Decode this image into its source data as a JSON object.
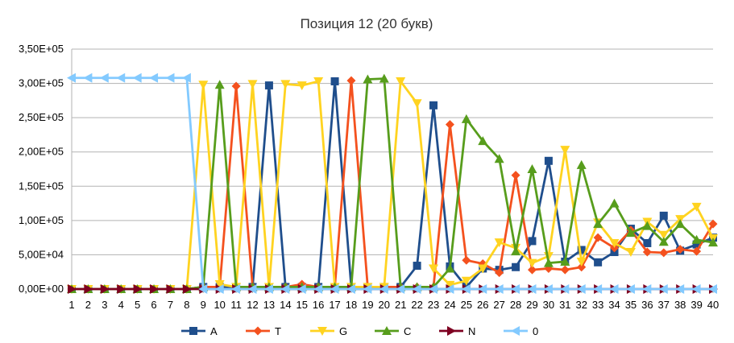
{
  "chart_data": {
    "type": "line",
    "title": "Позиция 12 (20 букв)",
    "xlabel": "",
    "ylabel": "",
    "categories": [
      "1",
      "2",
      "3",
      "4",
      "5",
      "6",
      "7",
      "8",
      "9",
      "10",
      "11",
      "12",
      "13",
      "14",
      "15",
      "16",
      "17",
      "18",
      "19",
      "20",
      "21",
      "22",
      "23",
      "24",
      "25",
      "26",
      "27",
      "28",
      "29",
      "30",
      "31",
      "32",
      "33",
      "34",
      "35",
      "36",
      "37",
      "38",
      "39",
      "40"
    ],
    "ylim": [
      0,
      350000
    ],
    "yticks": [
      "0,00E+00",
      "5,00E+04",
      "1,00E+05",
      "1,50E+05",
      "2,00E+05",
      "2,50E+05",
      "3,00E+05",
      "3,50E+05"
    ],
    "ytick_values": [
      0,
      50000,
      100000,
      150000,
      200000,
      250000,
      300000,
      350000
    ],
    "grid": "horizontal",
    "legend_position": "bottom",
    "series": [
      {
        "name": "A",
        "color": "#1f4e8c",
        "marker": "square",
        "values": [
          0,
          0,
          0,
          0,
          0,
          0,
          0,
          0,
          3000,
          3000,
          3000,
          3000,
          297000,
          3000,
          3000,
          3000,
          303000,
          3000,
          3000,
          3000,
          3000,
          34000,
          268000,
          33000,
          3000,
          30000,
          28000,
          32000,
          70000,
          187000,
          40000,
          57000,
          39000,
          54000,
          88000,
          67000,
          107000,
          56000,
          65000,
          75000
        ]
      },
      {
        "name": "T",
        "color": "#f4511e",
        "marker": "diamond",
        "values": [
          0,
          0,
          0,
          0,
          0,
          0,
          0,
          0,
          3000,
          3000,
          296000,
          3000,
          3000,
          3000,
          7000,
          3000,
          3000,
          304000,
          3000,
          3000,
          3000,
          3000,
          3000,
          240000,
          42000,
          37000,
          24000,
          166000,
          28000,
          30000,
          28000,
          32000,
          75000,
          60000,
          86000,
          54000,
          53000,
          58000,
          55000,
          95000
        ]
      },
      {
        "name": "G",
        "color": "#ffd320",
        "marker": "triangle-down",
        "values": [
          0,
          0,
          0,
          0,
          0,
          0,
          0,
          0,
          298000,
          7000,
          3000,
          299000,
          3000,
          299000,
          297000,
          303000,
          3000,
          3000,
          3000,
          3000,
          303000,
          271000,
          30000,
          6000,
          12000,
          30000,
          68000,
          60000,
          38000,
          48000,
          203000,
          40000,
          97000,
          67000,
          54000,
          98000,
          79000,
          102000,
          120000,
          74000
        ]
      },
      {
        "name": "C",
        "color": "#579d1c",
        "marker": "triangle-up",
        "values": [
          0,
          0,
          0,
          0,
          0,
          0,
          0,
          0,
          3000,
          298000,
          3000,
          3000,
          3000,
          3000,
          3000,
          3000,
          3000,
          3000,
          306000,
          307000,
          3000,
          3000,
          3000,
          30000,
          248000,
          216000,
          190000,
          55000,
          175000,
          38000,
          40000,
          181000,
          95000,
          125000,
          82000,
          92000,
          69000,
          95000,
          72000,
          68000
        ]
      },
      {
        "name": "N",
        "color": "#7e0021",
        "marker": "triangle-right",
        "values": [
          0,
          0,
          0,
          0,
          0,
          0,
          0,
          0,
          0,
          0,
          0,
          0,
          0,
          0,
          0,
          0,
          0,
          0,
          0,
          0,
          0,
          0,
          0,
          0,
          0,
          0,
          0,
          0,
          0,
          0,
          0,
          0,
          0,
          0,
          0,
          0,
          0,
          0,
          0,
          0
        ]
      },
      {
        "name": "0",
        "color": "#83caff",
        "marker": "triangle-left",
        "values": [
          308000,
          308000,
          308000,
          308000,
          308000,
          308000,
          308000,
          308000,
          0,
          0,
          0,
          0,
          0,
          0,
          0,
          0,
          0,
          0,
          0,
          0,
          0,
          0,
          0,
          0,
          0,
          0,
          0,
          0,
          0,
          0,
          0,
          0,
          0,
          0,
          0,
          0,
          0,
          0,
          0,
          0
        ]
      }
    ]
  }
}
